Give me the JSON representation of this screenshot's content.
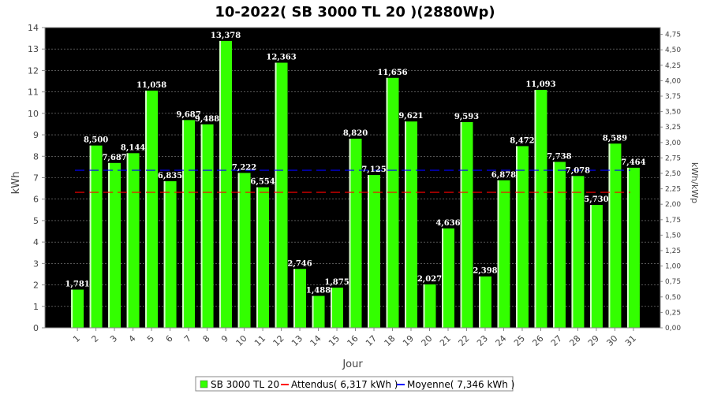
{
  "chart_data": {
    "type": "bar",
    "title": "10-2022( SB 3000 TL 20 )(2880Wp)",
    "xlabel": "Jour",
    "ylabel": "kWh",
    "y2label": "kWh/kWp",
    "ylim": [
      0,
      14
    ],
    "y2lim": [
      0,
      4.86
    ],
    "grid": true,
    "background": "#000000",
    "categories": [
      "1",
      "2",
      "3",
      "4",
      "5",
      "6",
      "7",
      "8",
      "9",
      "10",
      "11",
      "12",
      "13",
      "14",
      "15",
      "16",
      "17",
      "18",
      "19",
      "20",
      "21",
      "22",
      "23",
      "24",
      "25",
      "26",
      "27",
      "28",
      "29",
      "30",
      "31"
    ],
    "yticks": [
      "0",
      "1",
      "2",
      "3",
      "4",
      "5",
      "6",
      "7",
      "8",
      "9",
      "10",
      "11",
      "12",
      "13",
      "14"
    ],
    "y2ticks": [
      "0,00",
      "0,25",
      "0,50",
      "0,75",
      "1,00",
      "1,25",
      "1,50",
      "1,75",
      "2,00",
      "2,25",
      "2,50",
      "2,75",
      "3,00",
      "3,25",
      "3,50",
      "3,75",
      "4,00",
      "4,25",
      "4,50",
      "4,75"
    ],
    "series": [
      {
        "name": "SB 3000 TL 20",
        "color": "#33ff00",
        "values": [
          1.781,
          8.5,
          7.687,
          8.144,
          11.058,
          6.835,
          9.687,
          9.488,
          13.378,
          7.222,
          6.554,
          12.363,
          2.746,
          1.488,
          1.875,
          8.82,
          7.125,
          11.656,
          9.621,
          2.027,
          4.636,
          9.593,
          2.398,
          6.878,
          8.472,
          11.093,
          7.738,
          7.078,
          5.73,
          8.589,
          7.464
        ],
        "labels": [
          "1,781",
          "8,500",
          "7,687",
          "8,144",
          "11,058",
          "6,835",
          "9,687",
          "9,488",
          "13,378",
          "7,222",
          "6,554",
          "12,363",
          "2,746",
          "1,488",
          "1,875",
          "8,820",
          "7,125",
          "11,656",
          "9,621",
          "2,027",
          "4,636",
          "9,593",
          "2,398",
          "6,878",
          "8,472",
          "11,093",
          "7,738",
          "7,078",
          "5,730",
          "8,589",
          "7,464"
        ]
      }
    ],
    "reference_lines": [
      {
        "name": "Attendus( 6,317 kWh )",
        "value": 6.317,
        "color": "#ff0000"
      },
      {
        "name": "Moyenne( 7,346 kWh )",
        "value": 7.346,
        "color": "#0000ff"
      }
    ],
    "legend": {
      "position": "bottom",
      "items": [
        "SB 3000 TL 20",
        "Attendus( 6,317 kWh )",
        "Moyenne( 7,346 kWh )"
      ]
    }
  }
}
